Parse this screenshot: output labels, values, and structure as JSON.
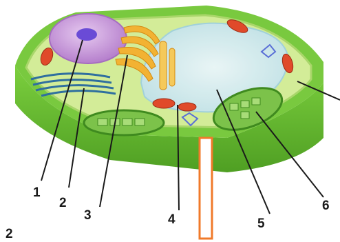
{
  "diagram": {
    "labels": [
      "1",
      "2",
      "3",
      "4",
      "5",
      "6"
    ],
    "figure_number": "2",
    "colors": {
      "wall_outer": "#6fbf3a",
      "wall_inner": "#b7e27a",
      "cytoplasm": "#d6ef9a",
      "nucleus": "#c79ad6",
      "nucleolus": "#6a4bd6",
      "vacuole": "#cfe8f0",
      "golgi": "#f2b233",
      "er": "#2f6f9f",
      "mitochondria": "#e04a2a",
      "chloroplast": "#7cc24a",
      "marker": "#f07a2a"
    },
    "structures": [
      "nucleus",
      "endoplasmic-reticulum",
      "golgi-apparatus",
      "mitochondrion",
      "vacuole",
      "chloroplast",
      "cell-wall"
    ]
  }
}
